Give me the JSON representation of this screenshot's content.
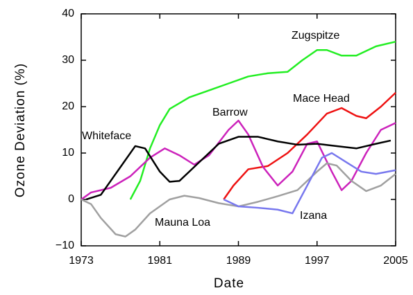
{
  "chart_data": {
    "type": "line",
    "xlabel": "Date",
    "ylabel": "Ozone Deviation (%)",
    "xlim": [
      1973,
      2005
    ],
    "xticks": [
      1973,
      1981,
      1989,
      1997,
      2005
    ],
    "ylim": [
      -10,
      40
    ],
    "yticks": [
      {
        "value": -10,
        "label": "−10"
      },
      0,
      10,
      20,
      30,
      40
    ],
    "series": [
      {
        "name": "Zugspitze",
        "color": "#22ee22",
        "x": [
          1978,
          1979,
          1980,
          1981,
          1982,
          1984,
          1986,
          1988,
          1990,
          1992,
          1994,
          1995.5,
          1997,
          1998,
          1999.5,
          2001,
          2003,
          2005
        ],
        "values": [
          0,
          4,
          11,
          16,
          19.5,
          22,
          23.5,
          25,
          26.5,
          27.2,
          27.5,
          30,
          32.2,
          32.2,
          31,
          31,
          33,
          34
        ]
      },
      {
        "name": "Mace Head",
        "color": "#ee1111",
        "x": [
          1987.5,
          1988.5,
          1990,
          1992,
          1994,
          1996,
          1998,
          1999.5,
          2001,
          2002,
          2003.5,
          2005
        ],
        "values": [
          0,
          3,
          6.5,
          7.2,
          10,
          14,
          18.5,
          19.7,
          18,
          17.5,
          20,
          23
        ]
      },
      {
        "name": "Barrow",
        "color": "#cc22bb",
        "x": [
          1973,
          1974,
          1976,
          1978,
          1980,
          1981.5,
          1983,
          1984.5,
          1986,
          1988,
          1989,
          1990,
          1991.5,
          1993,
          1994.5,
          1996,
          1997,
          1998.5,
          1999.5,
          2000.5,
          2002,
          2003.5,
          2005
        ],
        "values": [
          0,
          1.5,
          2.5,
          5,
          9,
          11,
          9.5,
          7.5,
          9.5,
          15,
          17,
          14,
          7,
          3,
          6,
          12,
          12.5,
          6,
          2,
          4,
          10,
          15,
          16.5
        ]
      },
      {
        "name": "Whiteface",
        "color": "#000000",
        "x": [
          1973.5,
          1975,
          1977,
          1978.5,
          1979.5,
          1981,
          1982,
          1983,
          1985,
          1987,
          1989,
          1991,
          1993,
          1995,
          1997,
          1999,
          2001,
          2003,
          2004.5
        ],
        "values": [
          0,
          1,
          7,
          11.5,
          11,
          6,
          3.8,
          4,
          8,
          12,
          13.5,
          13.5,
          12.5,
          11.8,
          12,
          11.5,
          11,
          12,
          12.7
        ]
      },
      {
        "name": "Mauna Loa",
        "color": "#a0a0a0",
        "x": [
          1973,
          1974,
          1975,
          1976.5,
          1977.5,
          1978.5,
          1980,
          1982,
          1983.5,
          1985,
          1987,
          1989,
          1991,
          1993,
          1995,
          1997,
          1998,
          1999,
          2000.5,
          2002,
          2003.5,
          2005
        ],
        "values": [
          0,
          -1,
          -4,
          -7.5,
          -8,
          -6.5,
          -3,
          0,
          0.8,
          0.3,
          -0.8,
          -1.5,
          -0.5,
          0.7,
          2,
          6,
          7.8,
          7.3,
          4,
          1.8,
          3,
          5.5
        ]
      },
      {
        "name": "Izana",
        "color": "#7777ee",
        "x": [
          1987.5,
          1989,
          1991,
          1993,
          1994.5,
          1996,
          1997.5,
          1998.5,
          2000,
          2001.5,
          2003,
          2005
        ],
        "values": [
          0,
          -1.5,
          -1.8,
          -2.2,
          -3,
          3,
          9,
          10,
          8,
          6,
          5.5,
          6.3
        ]
      }
    ]
  }
}
